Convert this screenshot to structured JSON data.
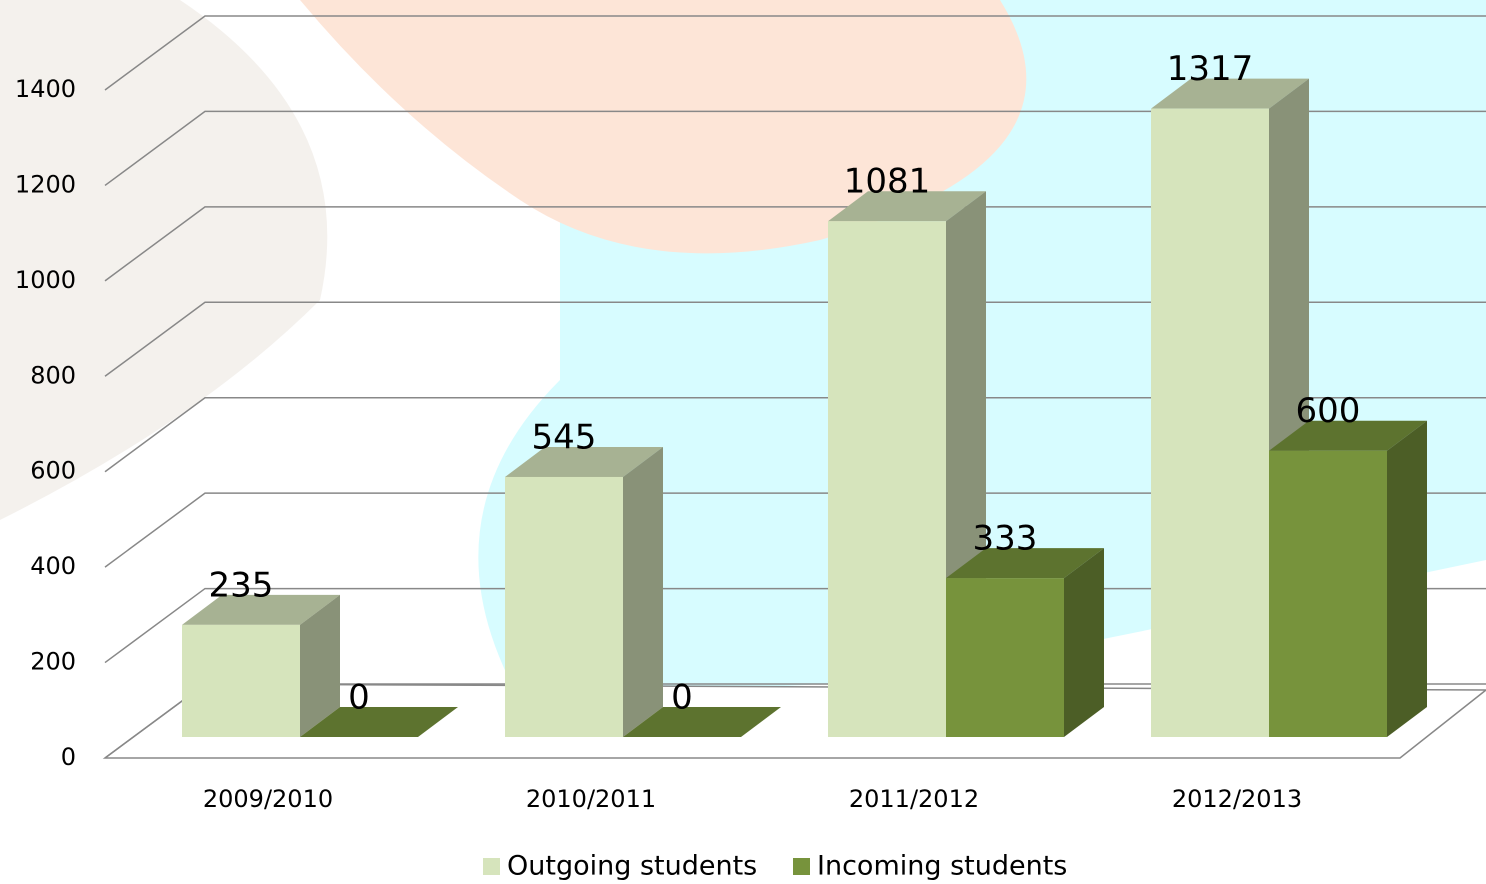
{
  "chart_data": {
    "type": "bar3d",
    "categories": [
      "2009/2010",
      "2010/2011",
      "2011/2012",
      "2012/2013"
    ],
    "series": [
      {
        "name": "Outgoing students",
        "color": "#d6e4bc",
        "values": [
          235,
          545,
          1081,
          1317
        ]
      },
      {
        "name": "Incoming students",
        "color": "#77933c",
        "values": [
          0,
          0,
          333,
          600
        ]
      }
    ],
    "ylim": [
      0,
      1400
    ],
    "yticks": [
      0,
      200,
      400,
      600,
      800,
      1000,
      1200,
      1400
    ],
    "grid": true,
    "legend": "bottom"
  }
}
